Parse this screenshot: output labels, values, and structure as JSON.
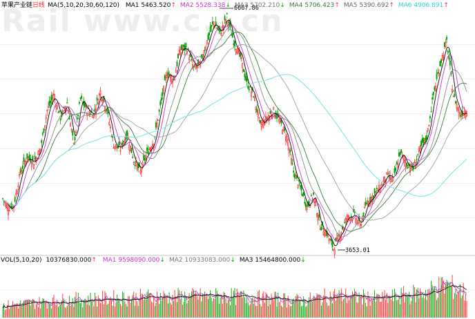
{
  "header": {
    "title": "苹果产业链",
    "period": "日线",
    "ma_label": "MA(5,10,20,30,60,120)",
    "items": [
      {
        "label": "MA1",
        "value": "5463.520",
        "arrow": "↑",
        "color": "#000000"
      },
      {
        "label": "MA2",
        "value": "5528.338",
        "arrow": "↓",
        "color": "#cc33cc"
      },
      {
        "label": "MA3",
        "value": "5702.210",
        "arrow": "↓",
        "color": "#777777"
      },
      {
        "label": "MA4",
        "value": "5706.423",
        "arrow": "↑",
        "color": "#3a7a3a"
      },
      {
        "label": "MA5",
        "value": "5390.692",
        "arrow": "↑",
        "color": "#666666"
      },
      {
        "label": "MA6",
        "value": "4906.891",
        "arrow": "↑",
        "color": "#33cccc"
      }
    ]
  },
  "watermark": "Rail www.c...cn",
  "annotations": {
    "high": "6667.86",
    "low": "3653.01"
  },
  "vol_header": {
    "label": "VOL(5,10,20)",
    "value": "10376830.000",
    "arrow": "↑",
    "items": [
      {
        "label": "MA1",
        "value": "9598090.000",
        "arrow": "↓",
        "color": "#cc33cc"
      },
      {
        "label": "MA2",
        "value": "10933083.000",
        "arrow": "↓",
        "color": "#777777"
      },
      {
        "label": "MA3",
        "value": "15464800.000",
        "arrow": "↓",
        "color": "#000000"
      }
    ]
  },
  "colors": {
    "up": "#ff2a2a",
    "down": "#00a000",
    "ma5": "#000000",
    "ma10": "#cc33cc",
    "ma20": "#888888",
    "ma30": "#3a7a3a",
    "ma60": "#9aa0a0",
    "ma120": "#7fe6e6"
  },
  "chart_data": {
    "type": "line",
    "title": "苹果产业链 日线",
    "price_ylim": [
      3600,
      6760
    ],
    "price_anchors": [
      [
        0,
        4300
      ],
      [
        5,
        4180
      ],
      [
        10,
        4220
      ],
      [
        16,
        4650
      ],
      [
        22,
        4850
      ],
      [
        28,
        4780
      ],
      [
        34,
        4950
      ],
      [
        40,
        5450
      ],
      [
        46,
        5650
      ],
      [
        52,
        5350
      ],
      [
        58,
        5550
      ],
      [
        64,
        5000
      ],
      [
        70,
        5600
      ],
      [
        76,
        5450
      ],
      [
        82,
        5400
      ],
      [
        88,
        5700
      ],
      [
        94,
        5450
      ],
      [
        100,
        5000
      ],
      [
        106,
        4950
      ],
      [
        112,
        5150
      ],
      [
        118,
        4800
      ],
      [
        124,
        4650
      ],
      [
        130,
        4900
      ],
      [
        136,
        5050
      ],
      [
        142,
        5500
      ],
      [
        148,
        5950
      ],
      [
        154,
        5850
      ],
      [
        160,
        6250
      ],
      [
        166,
        6250
      ],
      [
        172,
        6000
      ],
      [
        178,
        6050
      ],
      [
        184,
        6350
      ],
      [
        190,
        6600
      ],
      [
        196,
        6450
      ],
      [
        202,
        6667.86
      ],
      [
        208,
        6350
      ],
      [
        214,
        6150
      ],
      [
        220,
        5800
      ],
      [
        226,
        5650
      ],
      [
        232,
        5250
      ],
      [
        238,
        5350
      ],
      [
        244,
        5450
      ],
      [
        250,
        5300
      ],
      [
        256,
        5100
      ],
      [
        262,
        4650
      ],
      [
        268,
        4450
      ],
      [
        274,
        4200
      ],
      [
        280,
        4350
      ],
      [
        286,
        3950
      ],
      [
        292,
        3850
      ],
      [
        298,
        3653.01
      ],
      [
        304,
        3850
      ],
      [
        310,
        4050
      ],
      [
        316,
        4100
      ],
      [
        322,
        3950
      ],
      [
        328,
        4250
      ],
      [
        334,
        4350
      ],
      [
        340,
        4450
      ],
      [
        346,
        4600
      ],
      [
        352,
        4550
      ],
      [
        358,
        4900
      ],
      [
        364,
        4750
      ],
      [
        370,
        4700
      ],
      [
        376,
        4950
      ],
      [
        382,
        5100
      ],
      [
        388,
        5650
      ],
      [
        394,
        6050
      ],
      [
        400,
        6350
      ],
      [
        406,
        5650
      ],
      [
        412,
        5400
      ],
      [
        418,
        5463.52
      ]
    ],
    "volume_ylim": [
      0,
      22000000
    ],
    "volume_anchors": [
      [
        0,
        5200000
      ],
      [
        60,
        7600000
      ],
      [
        130,
        8800000
      ],
      [
        200,
        9200000
      ],
      [
        270,
        7200000
      ],
      [
        300,
        9600000
      ],
      [
        340,
        8000000
      ],
      [
        380,
        10800000
      ],
      [
        400,
        14000000
      ],
      [
        418,
        10376830
      ]
    ],
    "series": [
      {
        "name": "MA1",
        "period": 5
      },
      {
        "name": "MA2",
        "period": 10
      },
      {
        "name": "MA3",
        "period": 20
      },
      {
        "name": "MA4",
        "period": 30
      },
      {
        "name": "MA5",
        "period": 60
      },
      {
        "name": "MA6",
        "period": 120
      }
    ]
  }
}
